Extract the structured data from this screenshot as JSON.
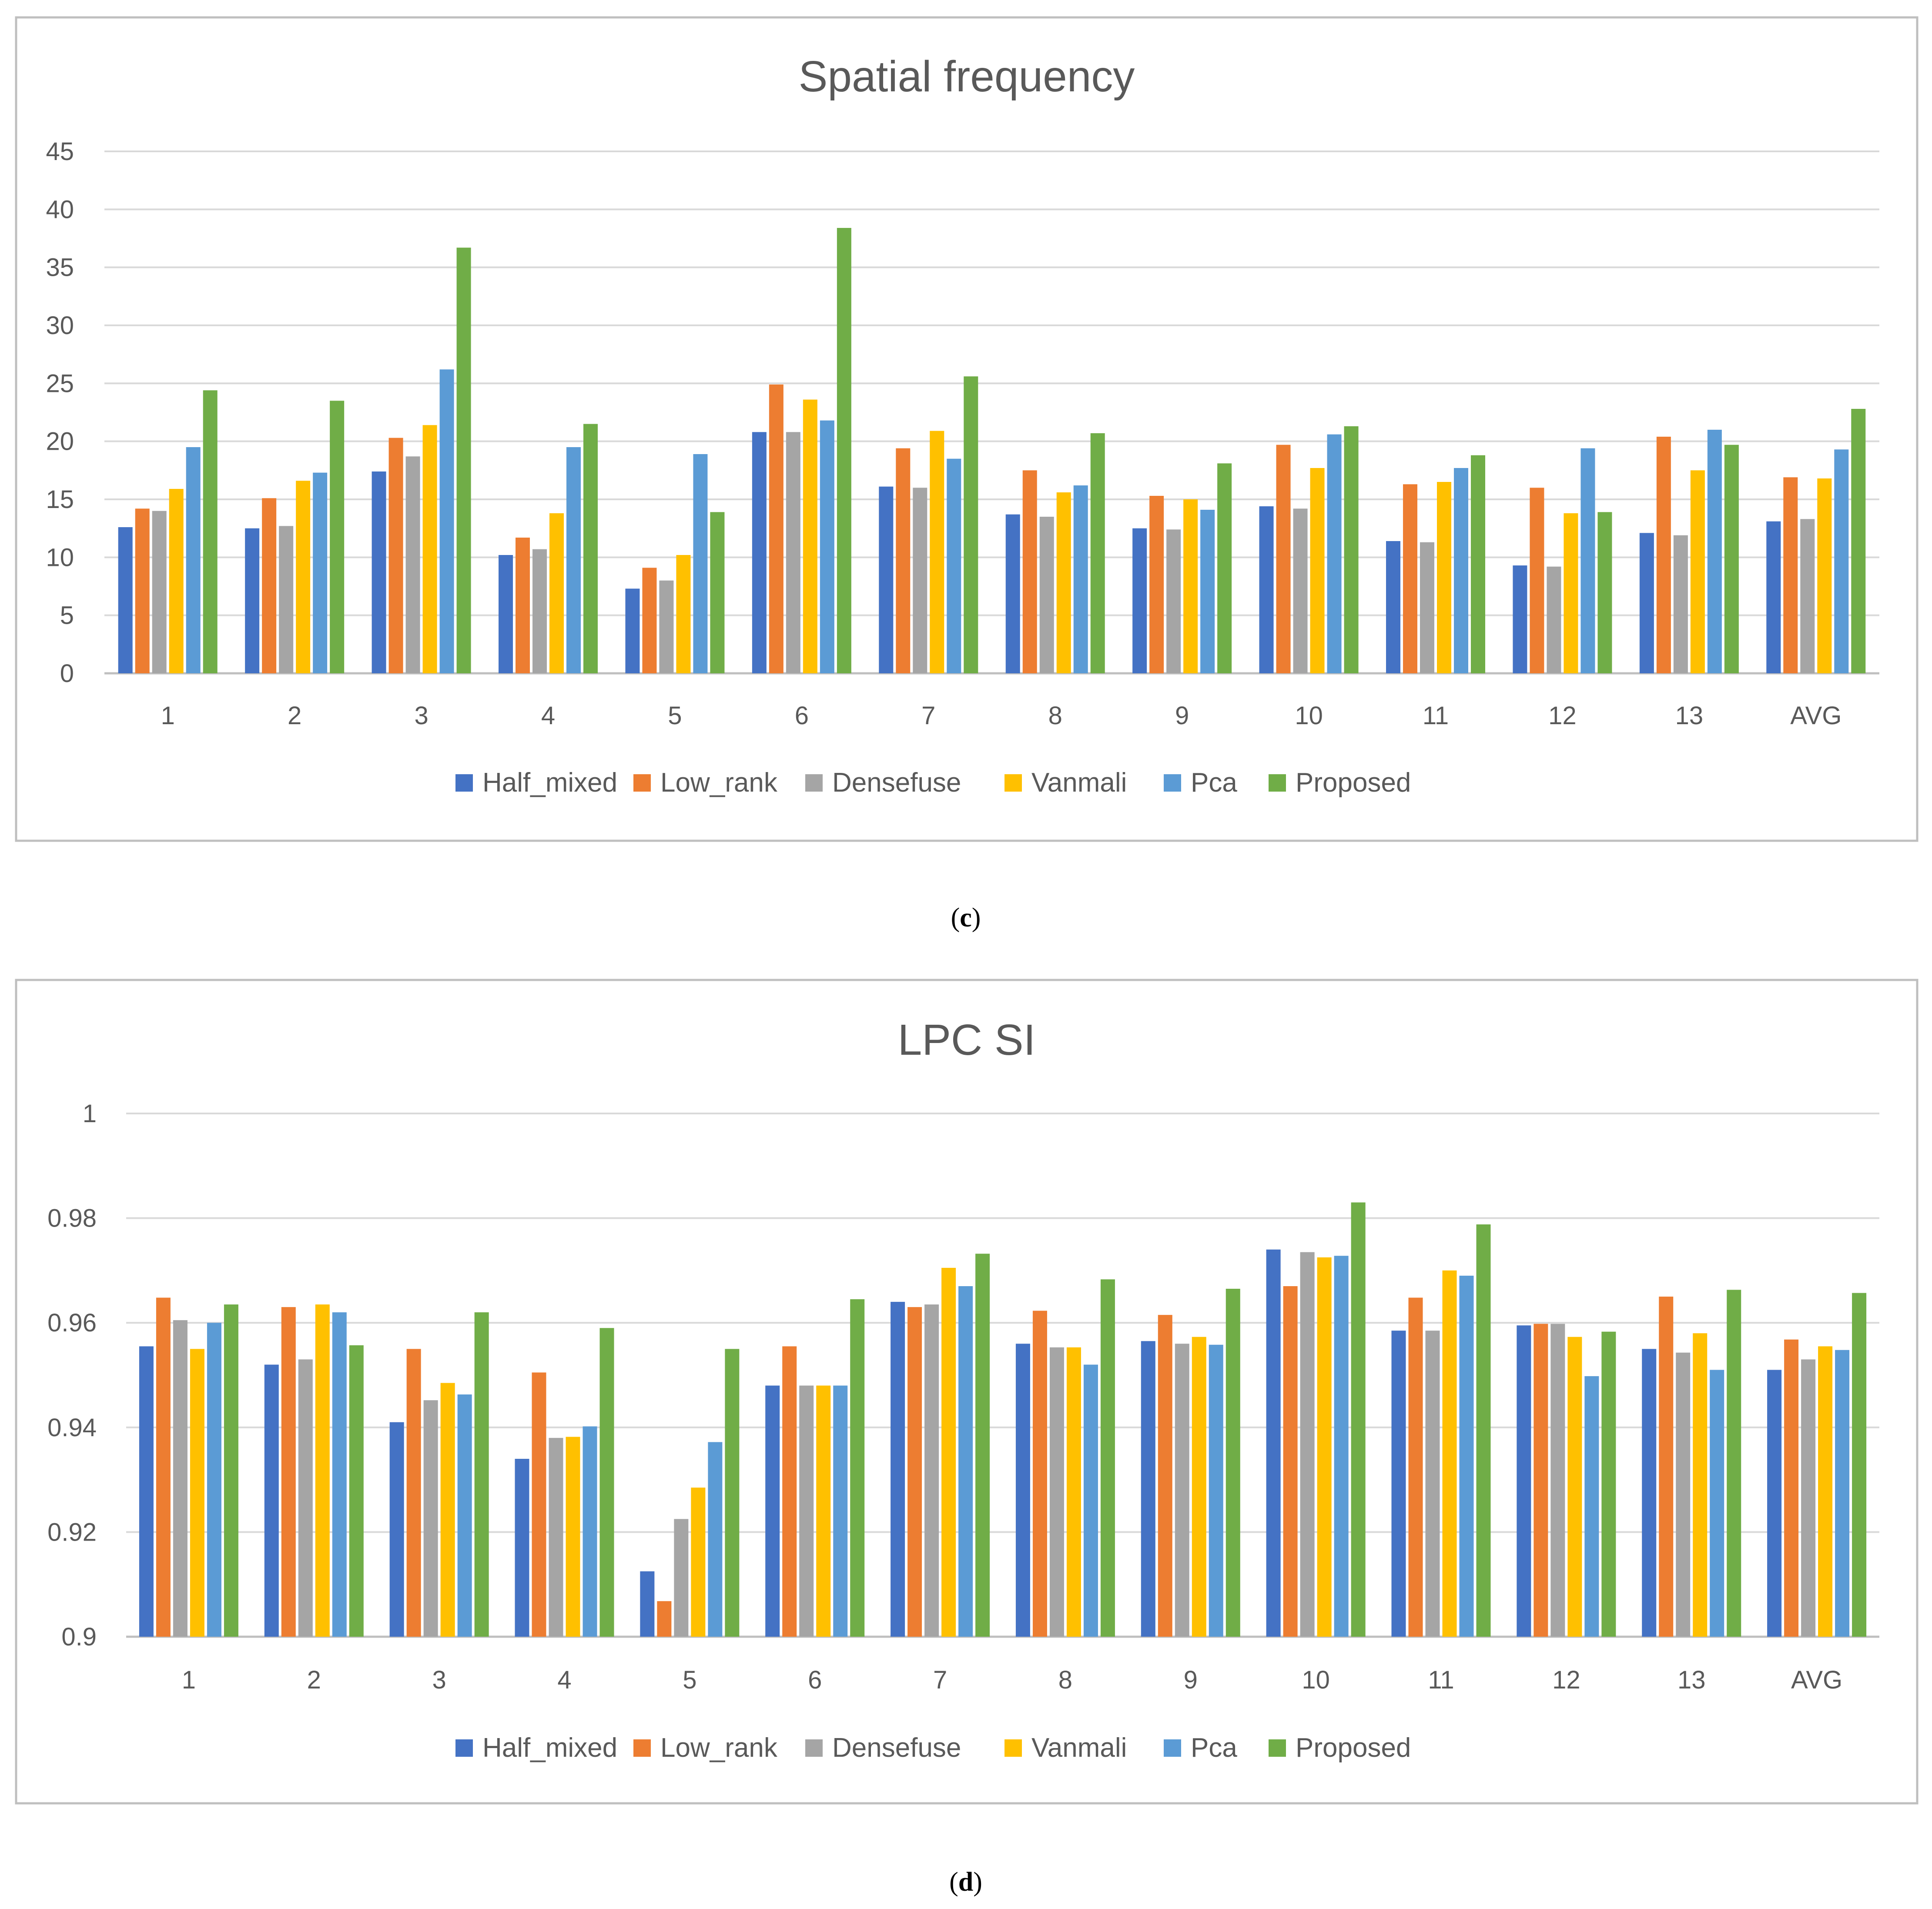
{
  "colors": {
    "Half_mixed": "#4472C4",
    "Low_rank": "#ED7D31",
    "Densefuse": "#A5A5A5",
    "Vanmali": "#FFC000",
    "Pca": "#5B9BD5",
    "Proposed": "#70AD47",
    "grid": "#D9D9D9",
    "border": "#BFBFBF",
    "text": "#595959"
  },
  "chart_data": [
    {
      "type": "bar",
      "title": "Spatial frequency",
      "xlabel": "",
      "ylabel": "",
      "ylim": [
        0,
        45
      ],
      "yticks": [
        "0",
        "5",
        "10",
        "15",
        "20",
        "25",
        "30",
        "35",
        "40",
        "45"
      ],
      "ytick_values": [
        0,
        5,
        10,
        15,
        20,
        25,
        30,
        35,
        40,
        45
      ],
      "grid": true,
      "legend": "bottom",
      "categories": [
        "1",
        "2",
        "3",
        "4",
        "5",
        "6",
        "7",
        "8",
        "9",
        "10",
        "11",
        "12",
        "13",
        "AVG"
      ],
      "series": [
        {
          "name": "Half_mixed",
          "values": [
            12.6,
            12.5,
            17.4,
            10.2,
            7.3,
            20.8,
            16.1,
            13.7,
            12.5,
            14.4,
            11.4,
            9.3,
            12.1,
            13.1
          ]
        },
        {
          "name": "Low_rank",
          "values": [
            14.2,
            15.1,
            20.3,
            11.7,
            9.1,
            24.9,
            19.4,
            17.5,
            15.3,
            19.7,
            16.3,
            16.0,
            20.4,
            16.9
          ]
        },
        {
          "name": "Densefuse",
          "values": [
            14.0,
            12.7,
            18.7,
            10.7,
            8.0,
            20.8,
            16.0,
            13.5,
            12.4,
            14.2,
            11.3,
            9.2,
            11.9,
            13.3
          ]
        },
        {
          "name": "Vanmali",
          "values": [
            15.9,
            16.6,
            21.4,
            13.8,
            10.2,
            23.6,
            20.9,
            15.6,
            15.0,
            17.7,
            16.5,
            13.8,
            17.5,
            16.8
          ]
        },
        {
          "name": "Pca",
          "values": [
            19.5,
            17.3,
            26.2,
            19.5,
            18.9,
            21.8,
            18.5,
            16.2,
            14.1,
            20.6,
            17.7,
            19.4,
            21.0,
            19.3
          ]
        },
        {
          "name": "Proposed",
          "values": [
            24.4,
            23.5,
            36.7,
            21.5,
            13.9,
            38.4,
            25.6,
            20.7,
            18.1,
            21.3,
            18.8,
            13.9,
            19.7,
            22.8
          ]
        }
      ],
      "caption_letter": "c"
    },
    {
      "type": "bar",
      "title": "LPC SI",
      "xlabel": "",
      "ylabel": "",
      "ylim": [
        0.9,
        1.0
      ],
      "yticks": [
        "0.9",
        "0.92",
        "0.94",
        "0.96",
        "0.98",
        "1"
      ],
      "ytick_values": [
        0.9,
        0.92,
        0.94,
        0.96,
        0.98,
        1.0
      ],
      "grid": true,
      "legend": "bottom",
      "categories": [
        "1",
        "2",
        "3",
        "4",
        "5",
        "6",
        "7",
        "8",
        "9",
        "10",
        "11",
        "12",
        "13",
        "AVG"
      ],
      "series": [
        {
          "name": "Half_mixed",
          "values": [
            0.9555,
            0.952,
            0.941,
            0.934,
            0.9125,
            0.948,
            0.964,
            0.956,
            0.9565,
            0.974,
            0.9585,
            0.9595,
            0.955,
            0.951
          ]
        },
        {
          "name": "Low_rank",
          "values": [
            0.9648,
            0.963,
            0.955,
            0.9505,
            0.9068,
            0.9555,
            0.963,
            0.9623,
            0.9615,
            0.967,
            0.9648,
            0.9598,
            0.965,
            0.9568
          ]
        },
        {
          "name": "Densefuse",
          "values": [
            0.9605,
            0.953,
            0.9452,
            0.938,
            0.9225,
            0.948,
            0.9635,
            0.9553,
            0.956,
            0.9735,
            0.9585,
            0.9598,
            0.9543,
            0.953
          ]
        },
        {
          "name": "Vanmali",
          "values": [
            0.955,
            0.9635,
            0.9485,
            0.9382,
            0.9285,
            0.948,
            0.9705,
            0.9553,
            0.9573,
            0.9725,
            0.97,
            0.9573,
            0.958,
            0.9555
          ]
        },
        {
          "name": "Pca",
          "values": [
            0.96,
            0.962,
            0.9463,
            0.9402,
            0.9372,
            0.948,
            0.967,
            0.952,
            0.9558,
            0.9728,
            0.969,
            0.9498,
            0.951,
            0.9548
          ]
        },
        {
          "name": "Proposed",
          "values": [
            0.9635,
            0.9557,
            0.962,
            0.959,
            0.955,
            0.9645,
            0.9732,
            0.9683,
            0.9665,
            0.983,
            0.9788,
            0.9583,
            0.9663,
            0.9657
          ]
        }
      ],
      "caption_letter": "d"
    }
  ]
}
